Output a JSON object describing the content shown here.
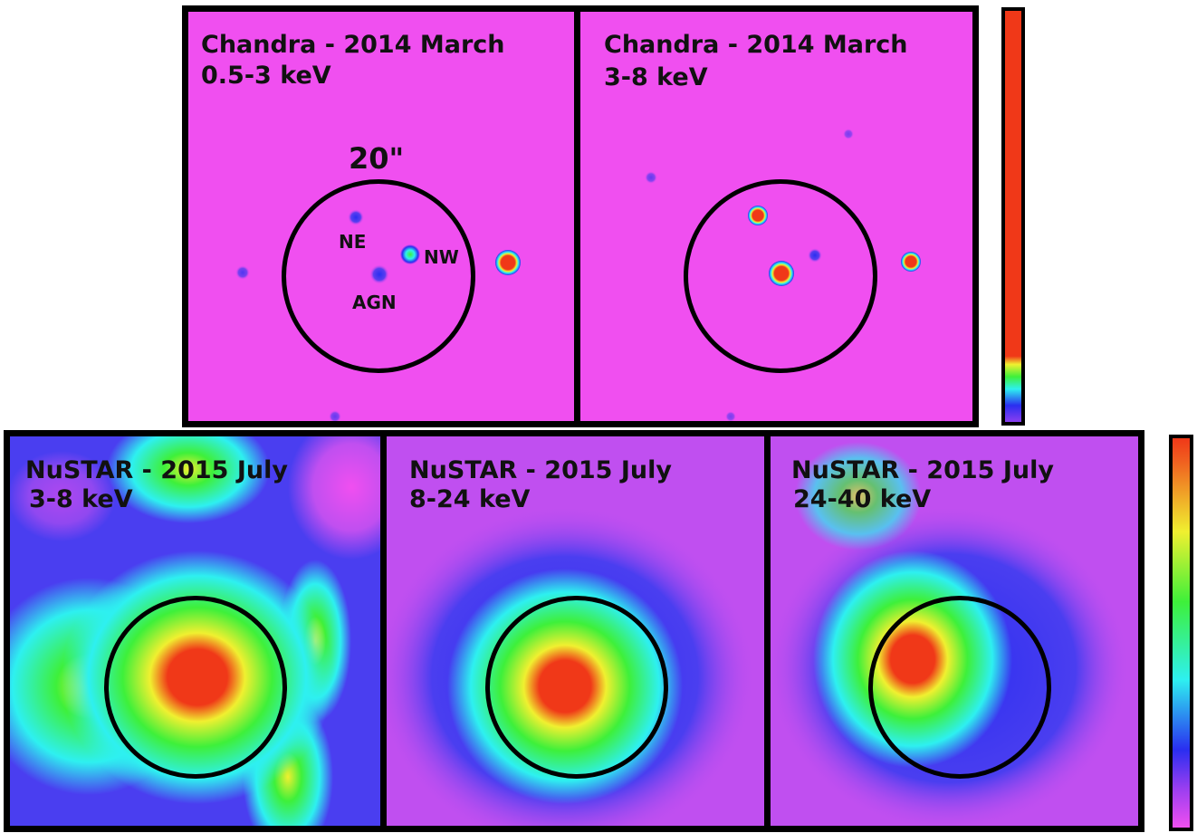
{
  "chandra": {
    "soft": {
      "title": "Chandra - 2014 March",
      "band": "0.5-3 keV",
      "scale": "20\"",
      "labels": {
        "ne": "NE",
        "nw": "NW",
        "agn": "AGN"
      }
    },
    "hard": {
      "title": "Chandra - 2014 March",
      "band": "3-8 keV"
    }
  },
  "nustar": {
    "p1": {
      "title": "NuSTAR - 2015 July",
      "band": "3-8 keV"
    },
    "p2": {
      "title": "NuSTAR - 2015 July",
      "band": "8-24 keV"
    },
    "p3": {
      "title": "NuSTAR - 2015 July",
      "band": "24-40 keV"
    }
  },
  "colors": {
    "background_magenta": "#f04ff0",
    "blue": "#2a2ef0",
    "cyan": "#2ef0f0",
    "green": "#3ef03a",
    "yellow": "#f0f030",
    "red": "#f03818",
    "frame": "#000000"
  }
}
